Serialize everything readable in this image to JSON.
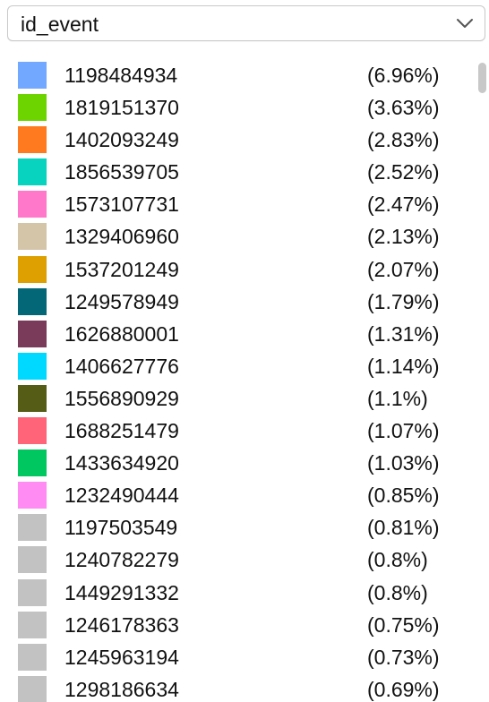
{
  "dropdown": {
    "selected": "id_event",
    "icon": "chevron-down-icon"
  },
  "legend": {
    "items": [
      {
        "label": "1198484934",
        "pct": "(6.96%)",
        "color": "#72a8ff"
      },
      {
        "label": "1819151370",
        "pct": "(3.63%)",
        "color": "#6dd400"
      },
      {
        "label": "1402093249",
        "pct": "(2.83%)",
        "color": "#ff7a1f"
      },
      {
        "label": "1856539705",
        "pct": "(2.52%)",
        "color": "#07d3bf"
      },
      {
        "label": "1573107731",
        "pct": "(2.47%)",
        "color": "#ff78c9"
      },
      {
        "label": "1329406960",
        "pct": "(2.13%)",
        "color": "#d4c4a8"
      },
      {
        "label": "1537201249",
        "pct": "(2.07%)",
        "color": "#dea000"
      },
      {
        "label": "1249578949",
        "pct": "(1.79%)",
        "color": "#036777"
      },
      {
        "label": "1626880001",
        "pct": "(1.31%)",
        "color": "#7a3a5a"
      },
      {
        "label": "1406627776",
        "pct": "(1.14%)",
        "color": "#00d9ff"
      },
      {
        "label": "1556890929",
        "pct": "(1.1%)",
        "color": "#555c16"
      },
      {
        "label": "1688251479",
        "pct": "(1.07%)",
        "color": "#ff6478"
      },
      {
        "label": "1433634920",
        "pct": "(1.03%)",
        "color": "#00c760"
      },
      {
        "label": "1232490444",
        "pct": "(0.85%)",
        "color": "#ff8bf3"
      },
      {
        "label": "1197503549",
        "pct": "(0.81%)",
        "color": "#c2c2c2"
      },
      {
        "label": "1240782279",
        "pct": "(0.8%)",
        "color": "#c2c2c2"
      },
      {
        "label": "1449291332",
        "pct": "(0.8%)",
        "color": "#c2c2c2"
      },
      {
        "label": "1246178363",
        "pct": "(0.75%)",
        "color": "#c2c2c2"
      },
      {
        "label": "1245963194",
        "pct": "(0.73%)",
        "color": "#c2c2c2"
      },
      {
        "label": "1298186634",
        "pct": "(0.69%)",
        "color": "#c2c2c2"
      }
    ]
  },
  "scrollbar": {
    "visible": true
  }
}
